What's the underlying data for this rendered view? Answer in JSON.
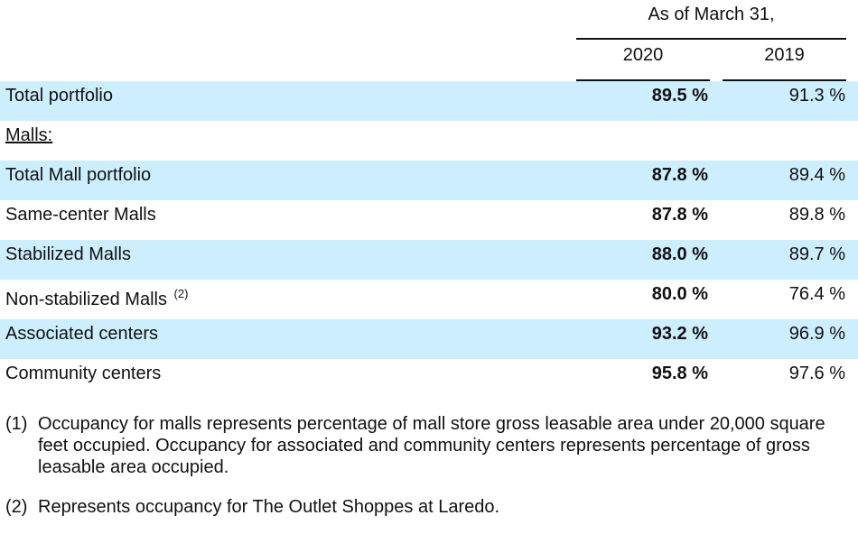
{
  "header": {
    "as_of": "As of March 31,",
    "col_2020": "2020",
    "col_2019": "2019"
  },
  "rows": [
    {
      "label": "Total portfolio",
      "v2020": "89.5 %",
      "v2019": "91.3 %",
      "sup": ""
    },
    {
      "label": "Malls:",
      "v2020": "",
      "v2019": "",
      "sup": ""
    },
    {
      "label": "Total Mall portfolio",
      "v2020": "87.8 %",
      "v2019": "89.4 %",
      "sup": ""
    },
    {
      "label": "Same-center Malls",
      "v2020": "87.8 %",
      "v2019": "89.8 %",
      "sup": ""
    },
    {
      "label": "Stabilized Malls",
      "v2020": "88.0 %",
      "v2019": "89.7 %",
      "sup": ""
    },
    {
      "label": "Non-stabilized Malls",
      "v2020": "80.0 %",
      "v2019": "76.4 %",
      "sup": "(2)"
    },
    {
      "label": "Associated centers",
      "v2020": "93.2 %",
      "v2019": "96.9 %",
      "sup": ""
    },
    {
      "label": "Community centers",
      "v2020": "95.8 %",
      "v2019": "97.6 %",
      "sup": ""
    }
  ],
  "footnotes": [
    {
      "marker": "(1)",
      "text": "Occupancy for malls represents percentage of mall store gross leasable area under 20,000 square feet occupied. Occupancy for associated and community centers represents percentage of gross leasable area occupied."
    },
    {
      "marker": "(2)",
      "text": "Represents occupancy for The Outlet Shoppes at Laredo."
    }
  ],
  "colors": {
    "row_shade": "#cdeefd",
    "text": "#111111"
  }
}
